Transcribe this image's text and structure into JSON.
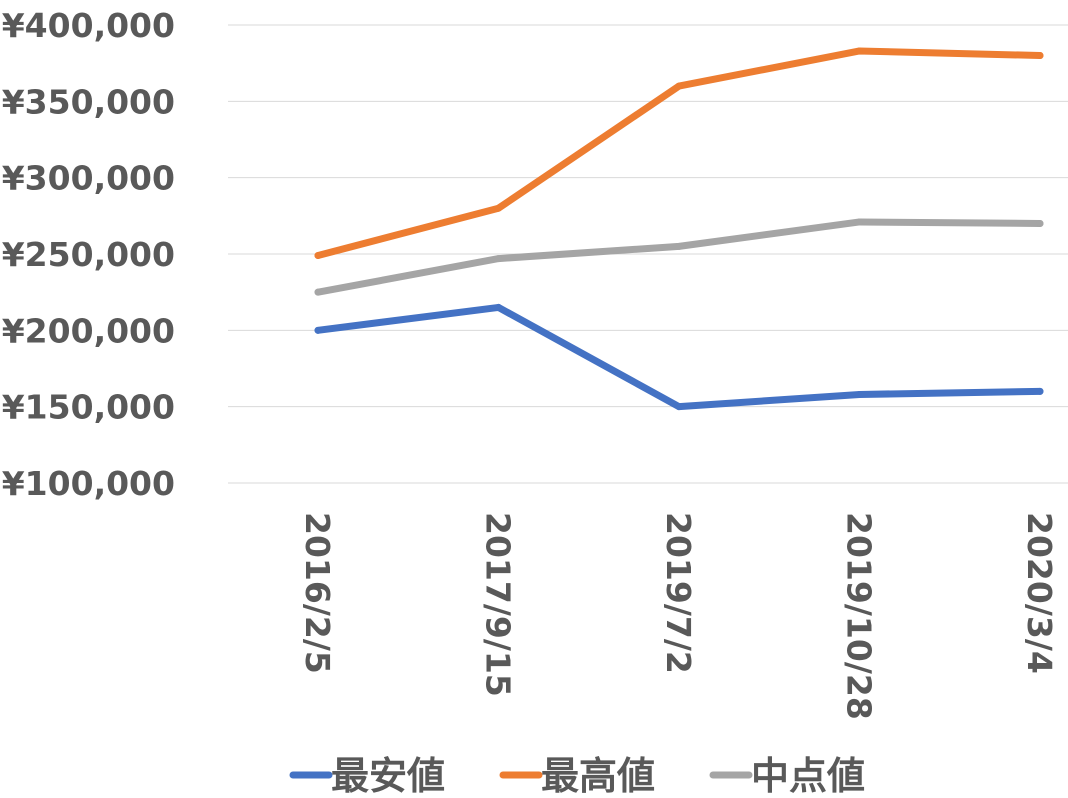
{
  "chart_data": {
    "type": "line",
    "title": "",
    "xlabel": "",
    "ylabel": "",
    "categories": [
      "2016/2/5",
      "2017/9/15",
      "2019/7/2",
      "2019/10/28",
      "2020/3/4"
    ],
    "ylim": [
      100000,
      400000
    ],
    "y_ticks": [
      100000,
      150000,
      200000,
      250000,
      300000,
      350000,
      400000
    ],
    "y_tick_labels": [
      "¥100,000",
      "¥150,000",
      "¥200,000",
      "¥250,000",
      "¥300,000",
      "¥350,000",
      "¥400,000"
    ],
    "grid": true,
    "legend_position": "bottom",
    "series": [
      {
        "name": "最安値",
        "color": "#4472C4",
        "values": [
          200000,
          215000,
          150000,
          158000,
          160000
        ]
      },
      {
        "name": "最高値",
        "color": "#ED7D31",
        "values": [
          249000,
          280000,
          360000,
          383000,
          380000
        ]
      },
      {
        "name": "中点値",
        "color": "#A5A5A5",
        "values": [
          225000,
          247000,
          255000,
          271000,
          270000
        ]
      }
    ]
  }
}
